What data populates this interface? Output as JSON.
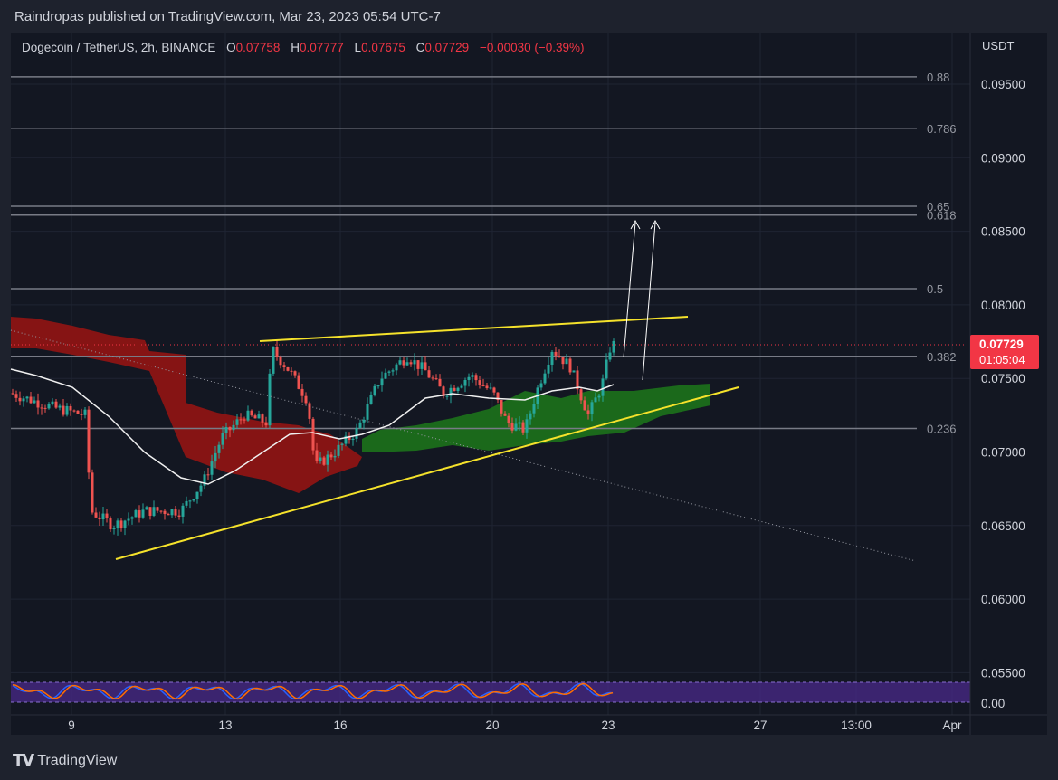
{
  "header": {
    "published": "Raindropas published on TradingView.com, Mar 23, 2023 05:54 UTC-7"
  },
  "legend": {
    "symbol": "Dogecoin / TetherUS, 2h, BINANCE",
    "open_label": "O",
    "open": "0.07758",
    "high_label": "H",
    "high": "0.07777",
    "low_label": "L",
    "low": "0.07675",
    "close_label": "C",
    "close": "0.07729",
    "change": "−0.00030 (−0.39%)"
  },
  "price_axis": {
    "currency": "USDT",
    "ticks": [
      "0.09500",
      "0.09000",
      "0.08500",
      "0.08000",
      "0.07500",
      "0.07000",
      "0.06500",
      "0.06000",
      "0.05500",
      "0.00"
    ],
    "last_price": "0.07729",
    "countdown": "01:05:04"
  },
  "time_axis": {
    "ticks": [
      "9",
      "13",
      "16",
      "20",
      "23",
      "27",
      "13:00",
      "Apr"
    ]
  },
  "fib_levels": [
    "0.88",
    "0.786",
    "0.65",
    "0.618",
    "0.5",
    "0.382",
    "0.236"
  ],
  "colors": {
    "up": "#26a69a",
    "down": "#ef5350",
    "trendline": "#f5e22b",
    "cloud_bear": "#8c1414",
    "cloud_bull": "#1b6e1b",
    "oscillator_bg": "#4a2a8a",
    "badge": "#f23645"
  },
  "branding": {
    "logo_icon": "tradingview-logo-icon",
    "name": "TradingView"
  },
  "chart_data": {
    "type": "candlestick",
    "title": "",
    "ylabel": "USDT",
    "ylim": [
      0.0535,
      0.0985
    ],
    "fib_retracement": [
      {
        "label": "0.88",
        "price": 0.0955
      },
      {
        "label": "0.786",
        "price": 0.092
      },
      {
        "label": "0.65",
        "price": 0.0867
      },
      {
        "label": "0.618",
        "price": 0.0861
      },
      {
        "label": "0.5",
        "price": 0.0811
      },
      {
        "label": "0.382",
        "price": 0.0765
      },
      {
        "label": "0.236",
        "price": 0.0716
      }
    ],
    "last_price": 0.07729,
    "ohlc_last": {
      "open": 0.07758,
      "high": 0.07777,
      "low": 0.07675,
      "close": 0.07729
    },
    "pattern": "ascending broadening wedge with upward projection arrows",
    "indicators": [
      "ichimoku cloud",
      "moving average",
      "stochastic RSI"
    ]
  }
}
